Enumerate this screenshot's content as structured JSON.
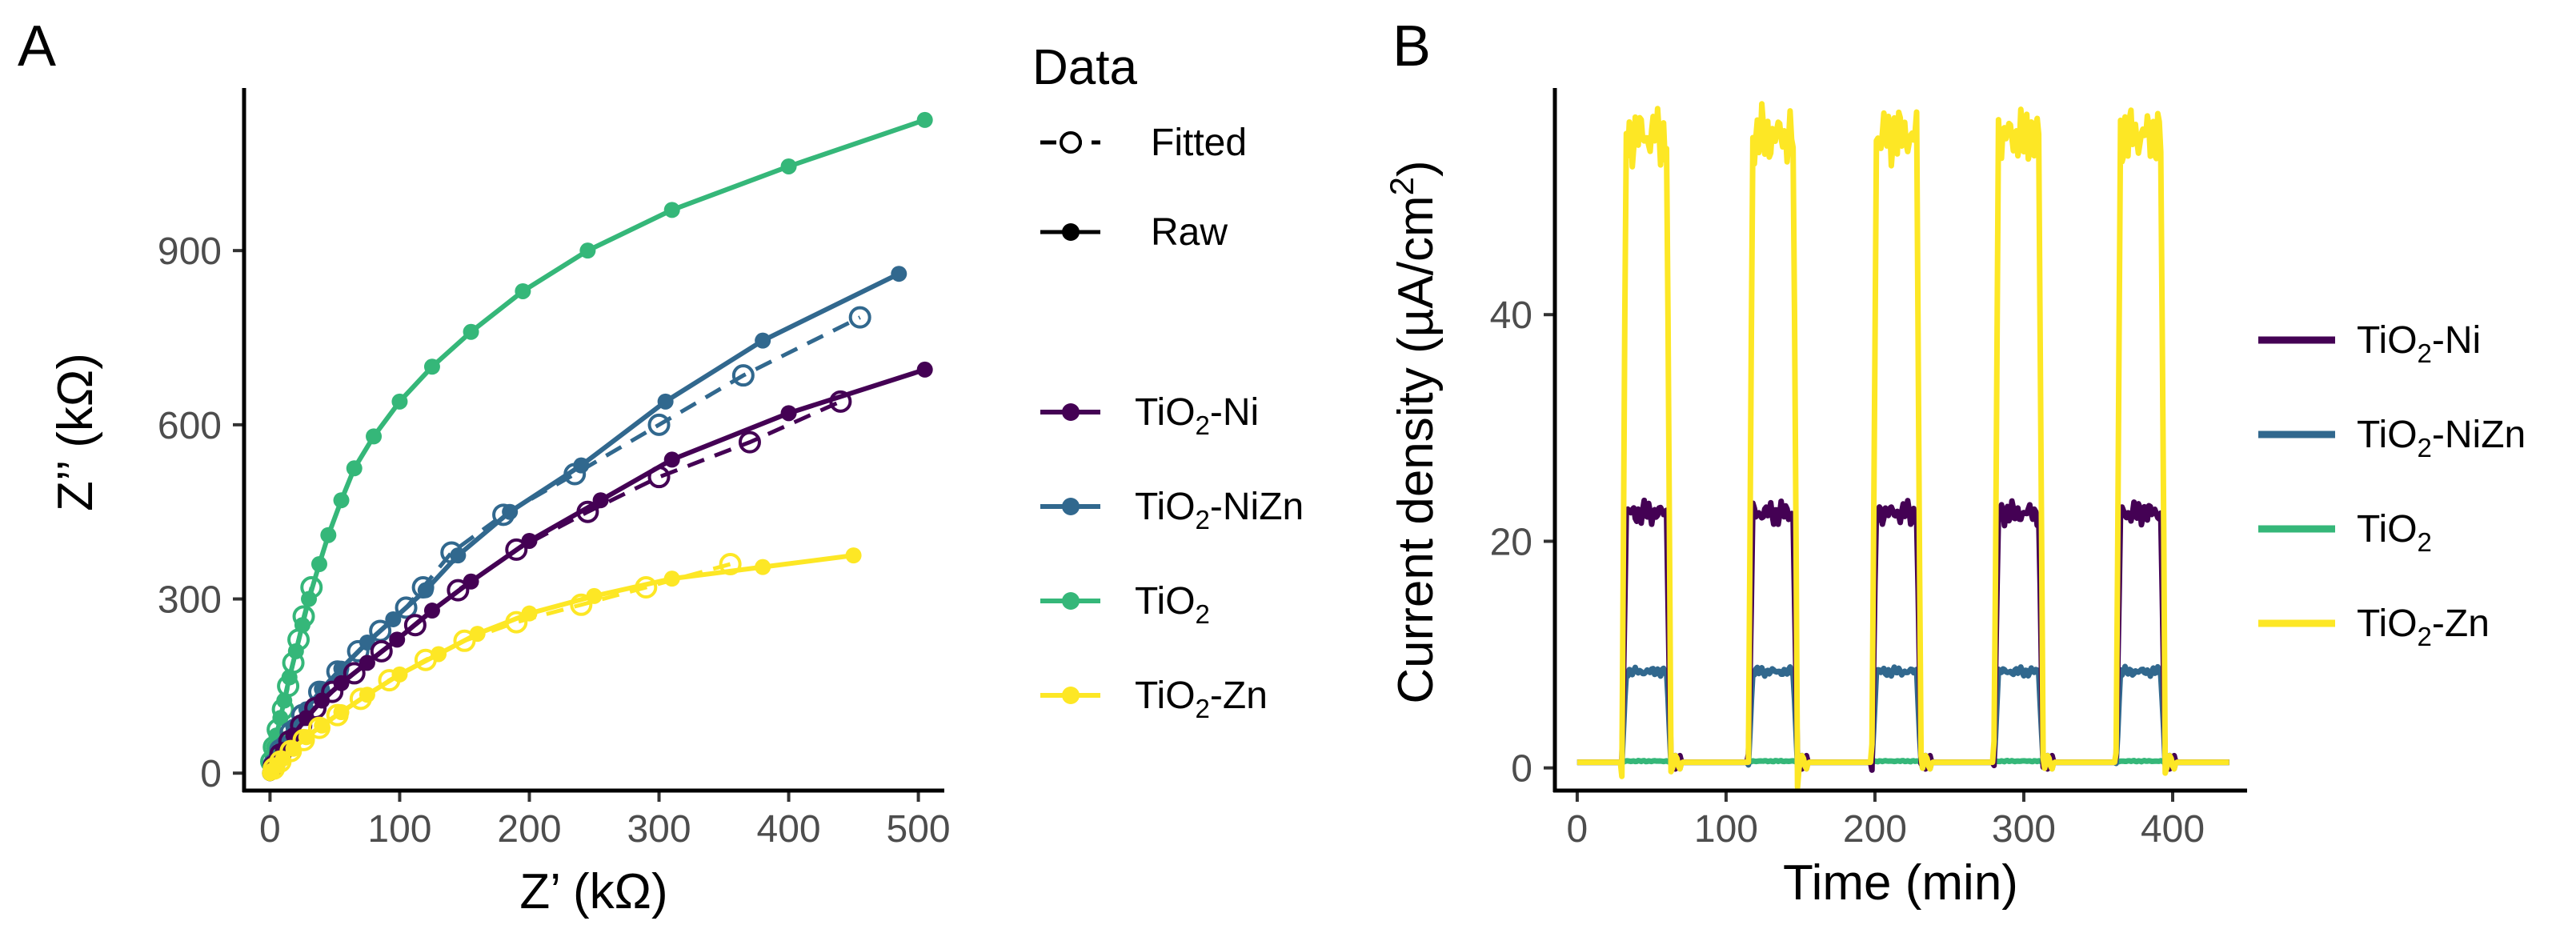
{
  "colors": {
    "TiO2-Ni": "#440154",
    "TiO2-NiZn": "#31688e",
    "TiO2": "#35b779",
    "TiO2-Zn": "#fde725",
    "legend_black": "#000000"
  },
  "chart_data": [
    {
      "panel_label": "A",
      "type": "scatter",
      "title": "",
      "xlabel": "Z’ (kΩ)",
      "ylabel": "Z’’ (kΩ)",
      "xlim": [
        -20,
        520
      ],
      "ylim": [
        -30,
        1180
      ],
      "x_ticks": [
        0,
        100,
        200,
        300,
        400,
        500
      ],
      "y_ticks": [
        0,
        300,
        600,
        900
      ],
      "x_tick_labels": [
        "0",
        "100",
        "200",
        "300",
        "400",
        "500"
      ],
      "y_tick_labels": [
        "0",
        "300",
        "600",
        "900"
      ],
      "legend": {
        "data_title": "Data",
        "data_entries": [
          {
            "name": "Fitted",
            "style": "dashed-open"
          },
          {
            "name": "Raw",
            "style": "solid-filled"
          }
        ],
        "sample_entries": [
          {
            "key": "TiO2-Ni",
            "base": "TiO",
            "sub": "2",
            "suffix": "-Ni"
          },
          {
            "key": "TiO2-NiZn",
            "base": "TiO",
            "sub": "2",
            "suffix": "-NiZn"
          },
          {
            "key": "TiO2",
            "base": "TiO",
            "sub": "2",
            "suffix": ""
          },
          {
            "key": "TiO2-Zn",
            "base": "TiO",
            "sub": "2",
            "suffix": "-Zn"
          }
        ]
      },
      "series": [
        {
          "name": "TiO2",
          "raw": [
            [
              0,
              0
            ],
            [
              1,
              15
            ],
            [
              2,
              30
            ],
            [
              3,
              45
            ],
            [
              5,
              65
            ],
            [
              8,
              95
            ],
            [
              11,
              125
            ],
            [
              15,
              165
            ],
            [
              20,
              210
            ],
            [
              25,
              255
            ],
            [
              30,
              300
            ],
            [
              38,
              360
            ],
            [
              45,
              410
            ],
            [
              55,
              470
            ],
            [
              65,
              525
            ],
            [
              80,
              580
            ],
            [
              100,
              640
            ],
            [
              125,
              700
            ],
            [
              155,
              760
            ],
            [
              195,
              830
            ],
            [
              245,
              900
            ],
            [
              310,
              970
            ],
            [
              400,
              1045
            ],
            [
              505,
              1125
            ]
          ],
          "fitted": [
            [
              1,
              20
            ],
            [
              3,
              45
            ],
            [
              6,
              75
            ],
            [
              10,
              110
            ],
            [
              14,
              150
            ],
            [
              18,
              190
            ],
            [
              22,
              230
            ],
            [
              26,
              270
            ],
            [
              32,
              320
            ]
          ]
        },
        {
          "name": "TiO2-NiZn",
          "raw": [
            [
              0,
              0
            ],
            [
              2,
              10
            ],
            [
              5,
              25
            ],
            [
              10,
              50
            ],
            [
              18,
              80
            ],
            [
              28,
              110
            ],
            [
              40,
              145
            ],
            [
              55,
              180
            ],
            [
              75,
              225
            ],
            [
              95,
              265
            ],
            [
              120,
              315
            ],
            [
              145,
              375
            ],
            [
              185,
              450
            ],
            [
              240,
              530
            ],
            [
              305,
              640
            ],
            [
              380,
              745
            ],
            [
              485,
              860
            ]
          ],
          "fitted": [
            [
              3,
              15
            ],
            [
              8,
              40
            ],
            [
              16,
              70
            ],
            [
              25,
              100
            ],
            [
              38,
              140
            ],
            [
              52,
              175
            ],
            [
              68,
              210
            ],
            [
              85,
              245
            ],
            [
              105,
              285
            ],
            [
              118,
              320
            ],
            [
              140,
              380
            ],
            [
              180,
              445
            ],
            [
              235,
              515
            ],
            [
              300,
              600
            ],
            [
              365,
              685
            ],
            [
              455,
              785
            ]
          ]
        },
        {
          "name": "TiO2-Ni",
          "raw": [
            [
              0,
              0
            ],
            [
              2,
              8
            ],
            [
              5,
              20
            ],
            [
              10,
              40
            ],
            [
              18,
              65
            ],
            [
              28,
              95
            ],
            [
              40,
              125
            ],
            [
              55,
              155
            ],
            [
              75,
              190
            ],
            [
              98,
              230
            ],
            [
              125,
              280
            ],
            [
              155,
              330
            ],
            [
              200,
              400
            ],
            [
              255,
              470
            ],
            [
              310,
              540
            ],
            [
              400,
              620
            ],
            [
              505,
              695
            ]
          ],
          "fitted": [
            [
              3,
              12
            ],
            [
              8,
              32
            ],
            [
              15,
              55
            ],
            [
              24,
              82
            ],
            [
              35,
              112
            ],
            [
              48,
              140
            ],
            [
              65,
              172
            ],
            [
              86,
              210
            ],
            [
              112,
              255
            ],
            [
              145,
              315
            ],
            [
              190,
              385
            ],
            [
              245,
              450
            ],
            [
              300,
              510
            ],
            [
              370,
              570
            ],
            [
              440,
              640
            ]
          ]
        },
        {
          "name": "TiO2-Zn",
          "raw": [
            [
              0,
              0
            ],
            [
              2,
              5
            ],
            [
              5,
              12
            ],
            [
              10,
              25
            ],
            [
              18,
              42
            ],
            [
              28,
              62
            ],
            [
              40,
              82
            ],
            [
              55,
              105
            ],
            [
              75,
              135
            ],
            [
              100,
              170
            ],
            [
              130,
              205
            ],
            [
              160,
              240
            ],
            [
              200,
              275
            ],
            [
              250,
              305
            ],
            [
              310,
              335
            ],
            [
              380,
              355
            ],
            [
              450,
              375
            ]
          ],
          "fitted": [
            [
              3,
              8
            ],
            [
              8,
              20
            ],
            [
              16,
              38
            ],
            [
              26,
              57
            ],
            [
              38,
              78
            ],
            [
              52,
              100
            ],
            [
              70,
              128
            ],
            [
              92,
              160
            ],
            [
              120,
              195
            ],
            [
              150,
              228
            ],
            [
              190,
              260
            ],
            [
              240,
              290
            ],
            [
              290,
              320
            ],
            [
              355,
              360
            ]
          ]
        }
      ]
    },
    {
      "panel_label": "B",
      "type": "line",
      "title": "",
      "xlabel": "Time (min)",
      "ylabel": "Current density (µA/cm²)",
      "ylabel_parts": {
        "main": "Current density (µA/cm",
        "sup": "2",
        "end": ")"
      },
      "xlim": [
        -15,
        450
      ],
      "ylim": [
        -2,
        60
      ],
      "x_ticks": [
        0,
        100,
        200,
        300,
        400
      ],
      "y_ticks": [
        0,
        20,
        40
      ],
      "x_tick_labels": [
        "0",
        "100",
        "200",
        "300",
        "400"
      ],
      "y_tick_labels": [
        "0",
        "20",
        "40"
      ],
      "on_intervals": [
        [
          30,
          63
        ],
        [
          115,
          148
        ],
        [
          198,
          231
        ],
        [
          280,
          313
        ],
        [
          362,
          395
        ]
      ],
      "baseline": 0.5,
      "series": [
        {
          "name": "TiO2-Ni",
          "on_level": 22.5
        },
        {
          "name": "TiO2-NiZn",
          "on_level": 8.5
        },
        {
          "name": "TiO2",
          "on_level": 0.6
        },
        {
          "name": "TiO2-Zn",
          "on_level": 55.8
        }
      ],
      "legend": [
        {
          "key": "TiO2-Ni",
          "base": "TiO",
          "sub": "2",
          "suffix": "-Ni"
        },
        {
          "key": "TiO2-NiZn",
          "base": "TiO",
          "sub": "2",
          "suffix": "-NiZn"
        },
        {
          "key": "TiO2",
          "base": "TiO",
          "sub": "2",
          "suffix": ""
        },
        {
          "key": "TiO2-Zn",
          "base": "TiO",
          "sub": "2",
          "suffix": "-Zn"
        }
      ]
    }
  ]
}
